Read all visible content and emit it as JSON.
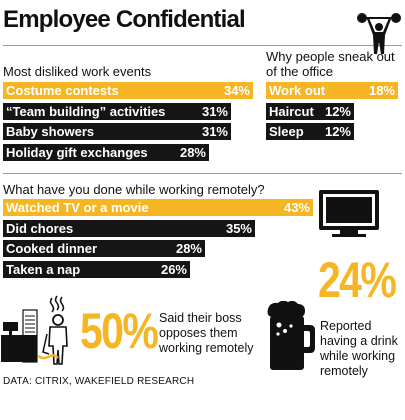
{
  "title": "Employee Confidential",
  "source": "DATA: CITRIX, WAKEFIELD RESEARCH",
  "colors": {
    "accent": "#f6b624",
    "dark": "#151515"
  },
  "chart_data": [
    {
      "type": "bar",
      "title": "Most disliked work events",
      "categories": [
        "Costume contests",
        "“Team building” activities",
        "Baby showers",
        "Holiday gift exchanges"
      ],
      "values": [
        34,
        31,
        31,
        28
      ],
      "value_labels": [
        "34%",
        "31%",
        "31%",
        "28%"
      ],
      "highlight": [
        true,
        false,
        false,
        false
      ]
    },
    {
      "type": "bar",
      "title": "Why people sneak out of the office",
      "categories": [
        "Work out",
        "Haircut",
        "Sleep"
      ],
      "values": [
        18,
        12,
        12
      ],
      "value_labels": [
        "18%",
        "12%",
        "12%"
      ],
      "highlight": [
        true,
        false,
        false
      ]
    },
    {
      "type": "bar",
      "title": "What have you done while working remotely?",
      "categories": [
        "Watched TV or a movie",
        "Did chores",
        "Cooked dinner",
        "Taken a nap"
      ],
      "values": [
        43,
        35,
        28,
        26
      ],
      "value_labels": [
        "43%",
        "35%",
        "28%",
        "26%"
      ],
      "highlight": [
        true,
        false,
        false,
        false
      ]
    }
  ],
  "stats": [
    {
      "value": "50%",
      "text": "Said their boss opposes them working remotely",
      "icon": "stressed-worker-icon"
    },
    {
      "value": "24%",
      "text": "Reported having a drink while working remotely",
      "icon": "beer-mug-icon"
    }
  ],
  "icons": {
    "workout": "weightlifter-icon",
    "tv": "television-icon",
    "worker": "stressed-worker-icon",
    "beer": "beer-mug-icon"
  }
}
